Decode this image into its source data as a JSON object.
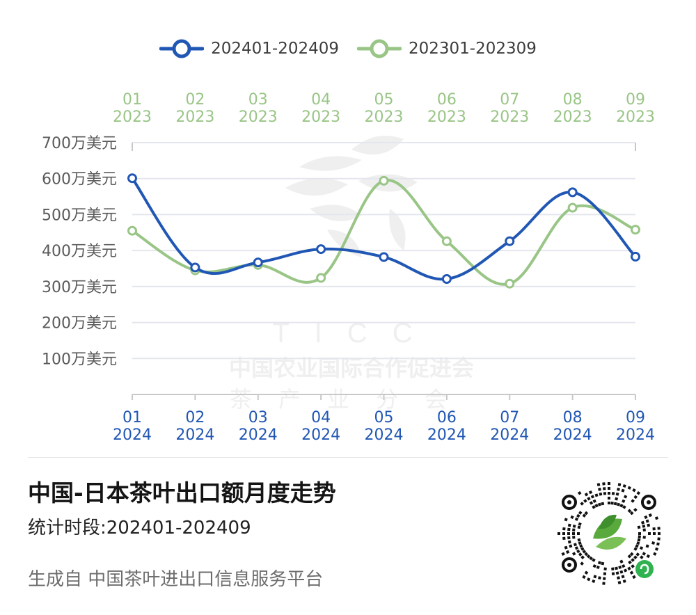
{
  "chart_data": {
    "type": "line",
    "categories": [
      "01",
      "02",
      "03",
      "04",
      "05",
      "06",
      "07",
      "08",
      "09"
    ],
    "x_top_labels": [
      [
        "01",
        "2023"
      ],
      [
        "02",
        "2023"
      ],
      [
        "03",
        "2023"
      ],
      [
        "04",
        "2023"
      ],
      [
        "05",
        "2023"
      ],
      [
        "06",
        "2023"
      ],
      [
        "07",
        "2023"
      ],
      [
        "08",
        "2023"
      ],
      [
        "09",
        "2023"
      ]
    ],
    "x_bottom_labels": [
      [
        "01",
        "2024"
      ],
      [
        "02",
        "2024"
      ],
      [
        "03",
        "2024"
      ],
      [
        "04",
        "2024"
      ],
      [
        "05",
        "2024"
      ],
      [
        "06",
        "2024"
      ],
      [
        "07",
        "2024"
      ],
      [
        "08",
        "2024"
      ],
      [
        "09",
        "2024"
      ]
    ],
    "y_ticks": [
      {
        "value": 100,
        "label": "100万美元"
      },
      {
        "value": 200,
        "label": "200万美元"
      },
      {
        "value": 300,
        "label": "300万美元"
      },
      {
        "value": 400,
        "label": "400万美元"
      },
      {
        "value": 500,
        "label": "500万美元"
      },
      {
        "value": 600,
        "label": "600万美元"
      },
      {
        "value": 700,
        "label": "700万美元"
      }
    ],
    "ylim": [
      0,
      700
    ],
    "series": [
      {
        "name": "202401-202409",
        "color": "#2157b4",
        "axis": "bottom",
        "values": [
          601,
          353,
          367,
          404,
          382,
          321,
          426,
          562,
          383
        ]
      },
      {
        "name": "202301-202309",
        "color": "#99c586",
        "axis": "top",
        "values": [
          455,
          345,
          360,
          324,
          594,
          426,
          308,
          519,
          458
        ]
      }
    ],
    "grid": true,
    "legend_position": "top-center"
  },
  "watermark": {
    "org": "TICC",
    "line1": "中国农业国际合作促进会",
    "line2": "茶产业分会"
  },
  "footer": {
    "title": "中国-日本茶叶出口额月度走势",
    "subtitle": "统计时段:202401-202409",
    "source": "生成自 中国茶叶进出口信息服务平台"
  },
  "colors": {
    "blue": "#2157b4",
    "green": "#99c586",
    "grid": "#e4e6ee",
    "axis_text": "#5b5b5b"
  },
  "icons": {
    "qr": "mini-program-qr-code-icon",
    "logo": "tea-leaf-logo-icon"
  }
}
